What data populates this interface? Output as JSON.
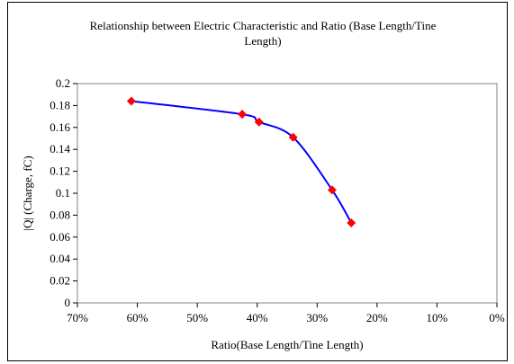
{
  "chart_data": {
    "type": "line",
    "title": "Relationship between Electric Characteristic and Ratio (Base Length/Tine Length)",
    "title_lines": [
      "Relationship between Electric Characteristic and Ratio (Base Length/Tine",
      "Length)"
    ],
    "xlabel": "Ratio(Base Length/Tine Length)",
    "ylabel": "|Q| (Charge, fC)",
    "x_reversed": true,
    "xlim": [
      0,
      0.7
    ],
    "ylim": [
      0,
      0.2
    ],
    "x_ticks": [
      {
        "value": 0.7,
        "label": "70%"
      },
      {
        "value": 0.6,
        "label": "60%"
      },
      {
        "value": 0.5,
        "label": "50%"
      },
      {
        "value": 0.4,
        "label": "40%"
      },
      {
        "value": 0.3,
        "label": "30%"
      },
      {
        "value": 0.2,
        "label": "20%"
      },
      {
        "value": 0.1,
        "label": "10%"
      },
      {
        "value": 0.0,
        "label": "0%"
      }
    ],
    "y_ticks": [
      {
        "value": 0,
        "label": "0"
      },
      {
        "value": 0.02,
        "label": "0.02"
      },
      {
        "value": 0.04,
        "label": "0.04"
      },
      {
        "value": 0.06,
        "label": "0.06"
      },
      {
        "value": 0.08,
        "label": "0.08"
      },
      {
        "value": 0.1,
        "label": "0.1"
      },
      {
        "value": 0.12,
        "label": "0.12"
      },
      {
        "value": 0.14,
        "label": "0.14"
      },
      {
        "value": 0.16,
        "label": "0.16"
      },
      {
        "value": 0.18,
        "label": "0.18"
      },
      {
        "value": 0.2,
        "label": "0.2"
      }
    ],
    "grid": false,
    "legend": "none",
    "series": [
      {
        "x": [
          0.61,
          0.425,
          0.397,
          0.34,
          0.275,
          0.243
        ],
        "y": [
          0.184,
          0.172,
          0.165,
          0.151,
          0.103,
          0.073
        ],
        "line_color": "#0000ff",
        "marker_color": "#ff0000",
        "marker": "diamond",
        "smooth": true
      }
    ]
  }
}
